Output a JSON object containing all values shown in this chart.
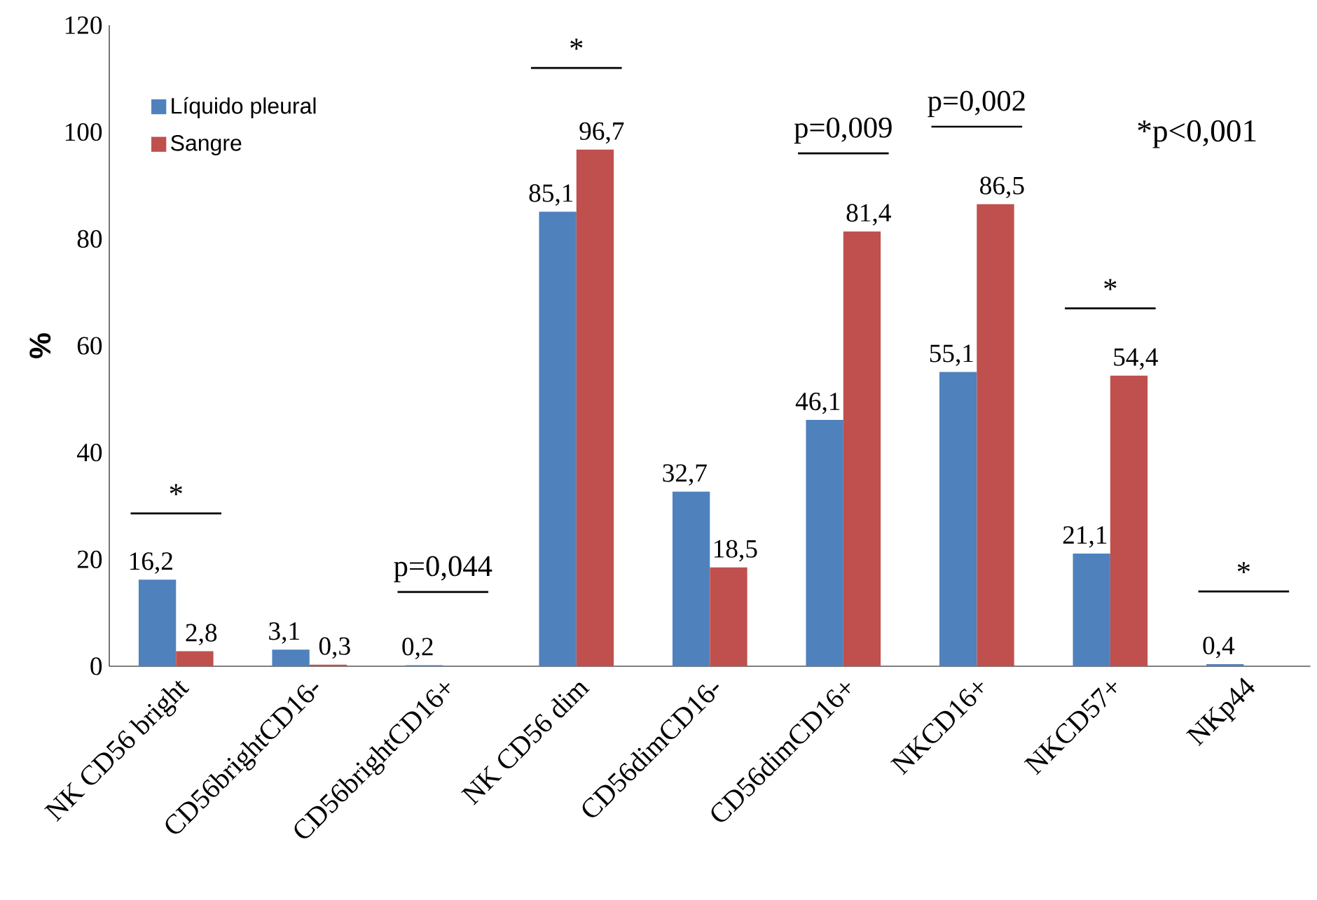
{
  "chart_data": {
    "type": "bar",
    "ylabel": "%",
    "categories": [
      "NK CD56 bright",
      "CD56brightCD16-",
      "CD56brightCD16+",
      "NK CD56 dim",
      "CD56dimCD16-",
      "CD56dimCD16+",
      "NKCD16+",
      "NKCD57+",
      "NKp44"
    ],
    "series": [
      {
        "name": "Líquido pleural",
        "color": "#4f81bd",
        "values": [
          16.2,
          3.1,
          0.2,
          85.1,
          32.7,
          46.1,
          55.1,
          21.1,
          0.4
        ],
        "value_labels": [
          "16,2",
          "3,1",
          "0,2",
          "85,1",
          "32,7",
          "46,1",
          "55,1",
          "21,1",
          "0,4"
        ]
      },
      {
        "name": "Sangre",
        "color": "#c0504d",
        "values": [
          2.8,
          0.3,
          null,
          96.7,
          18.5,
          81.4,
          86.5,
          54.4,
          null
        ],
        "value_labels": [
          "2,8",
          "0,3",
          null,
          "96,7",
          "18,5",
          "81,4",
          "86,5",
          "54,4",
          null
        ]
      }
    ],
    "ylim": [
      0,
      120
    ],
    "yticks": [
      0,
      20,
      40,
      60,
      80,
      100,
      120
    ],
    "legend": "top left",
    "annotations": [
      "*",
      "p=0,044",
      "*",
      "p=0,009",
      "p=0,002",
      "*",
      "*",
      "*p<0,001"
    ]
  }
}
